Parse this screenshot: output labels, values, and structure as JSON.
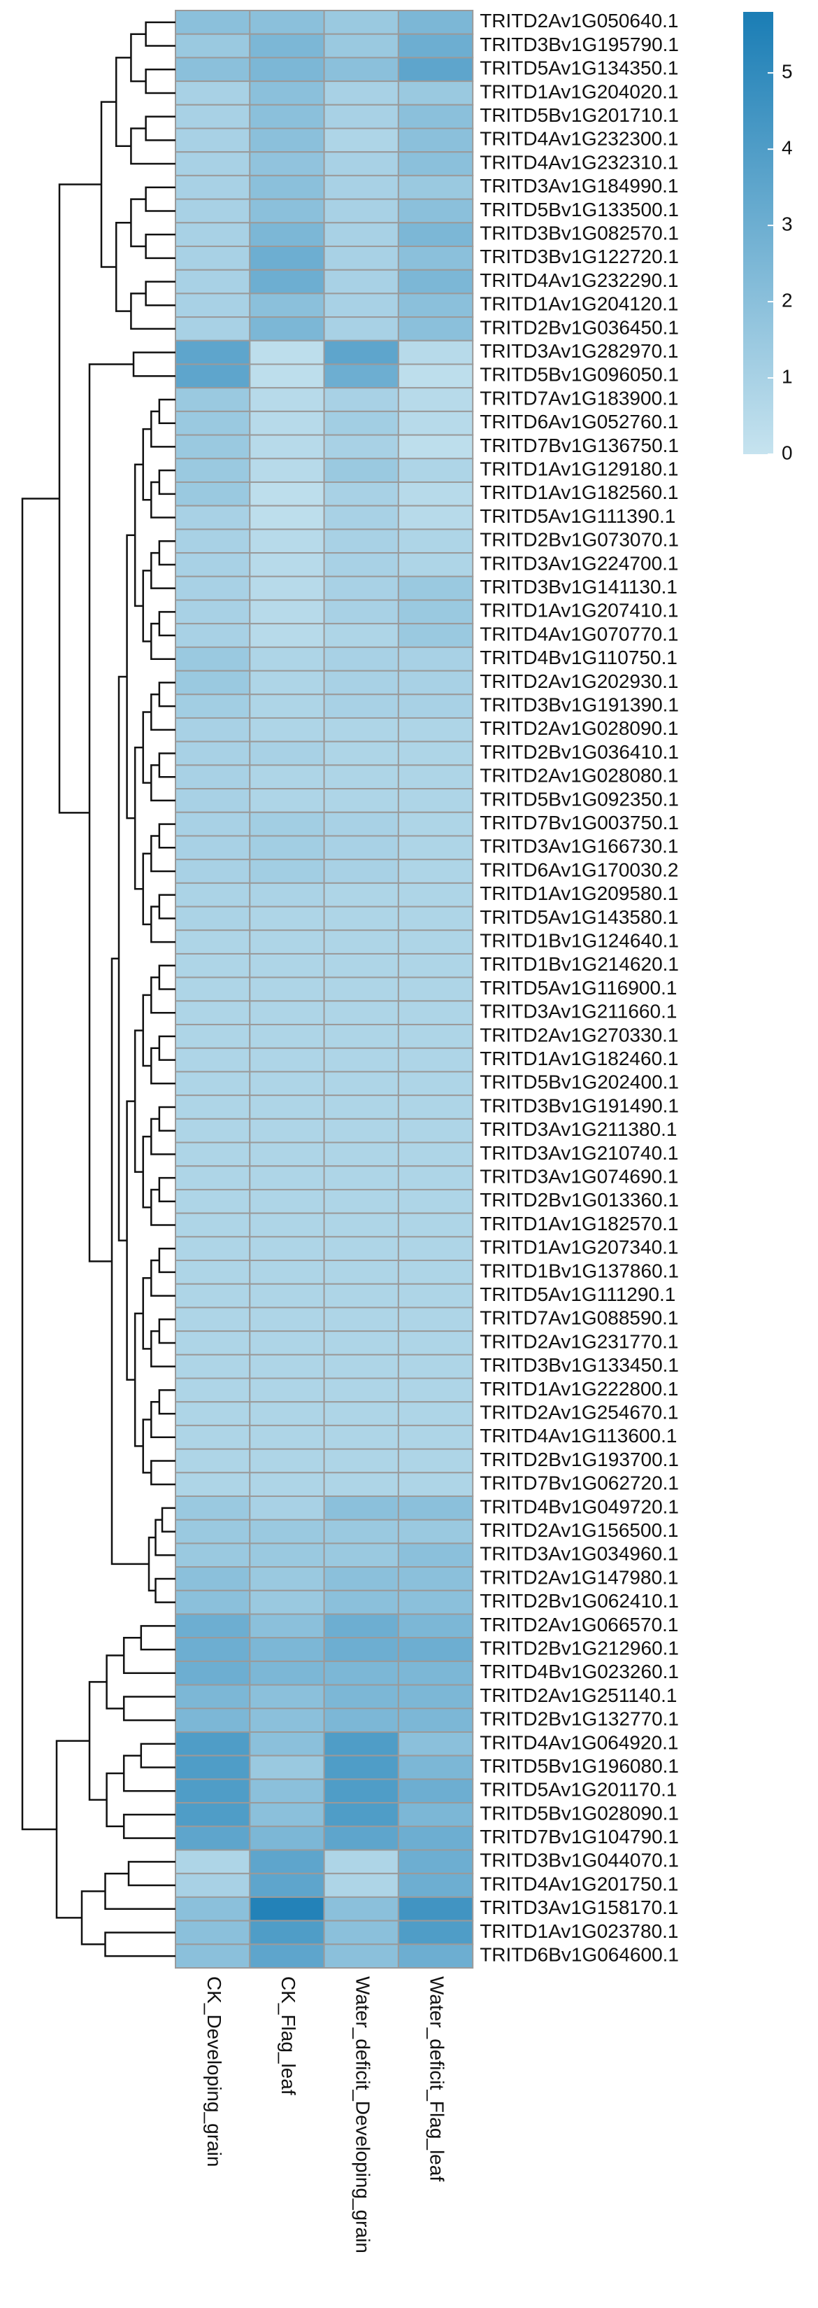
{
  "chart_data": {
    "type": "heatmap",
    "rows": [
      "TRITD2Av1G050640.1",
      "TRITD3Bv1G195790.1",
      "TRITD5Av1G134350.1",
      "TRITD1Av1G204020.1",
      "TRITD5Bv1G201710.1",
      "TRITD4Av1G232300.1",
      "TRITD4Av1G232310.1",
      "TRITD3Av1G184990.1",
      "TRITD5Bv1G133500.1",
      "TRITD3Bv1G082570.1",
      "TRITD3Bv1G122720.1",
      "TRITD4Av1G232290.1",
      "TRITD1Av1G204120.1",
      "TRITD2Bv1G036450.1",
      "TRITD3Av1G282970.1",
      "TRITD5Bv1G096050.1",
      "TRITD7Av1G183900.1",
      "TRITD6Av1G052760.1",
      "TRITD7Bv1G136750.1",
      "TRITD1Av1G129180.1",
      "TRITD1Av1G182560.1",
      "TRITD5Av1G111390.1",
      "TRITD2Bv1G073070.1",
      "TRITD3Av1G224700.1",
      "TRITD3Bv1G141130.1",
      "TRITD1Av1G207410.1",
      "TRITD4Av1G070770.1",
      "TRITD4Bv1G110750.1",
      "TRITD2Av1G202930.1",
      "TRITD3Bv1G191390.1",
      "TRITD2Av1G028090.1",
      "TRITD2Bv1G036410.1",
      "TRITD2Av1G028080.1",
      "TRITD5Bv1G092350.1",
      "TRITD7Bv1G003750.1",
      "TRITD3Av1G166730.1",
      "TRITD6Av1G170030.2",
      "TRITD1Av1G209580.1",
      "TRITD5Av1G143580.1",
      "TRITD1Bv1G124640.1",
      "TRITD1Bv1G214620.1",
      "TRITD5Av1G116900.1",
      "TRITD3Av1G211660.1",
      "TRITD2Av1G270330.1",
      "TRITD1Av1G182460.1",
      "TRITD5Bv1G202400.1",
      "TRITD3Bv1G191490.1",
      "TRITD3Av1G211380.1",
      "TRITD3Av1G210740.1",
      "TRITD3Av1G074690.1",
      "TRITD2Bv1G013360.1",
      "TRITD1Av1G182570.1",
      "TRITD1Av1G207340.1",
      "TRITD1Bv1G137860.1",
      "TRITD5Av1G111290.1",
      "TRITD7Av1G088590.1",
      "TRITD2Av1G231770.1",
      "TRITD3Bv1G133450.1",
      "TRITD1Av1G222800.1",
      "TRITD2Av1G254670.1",
      "TRITD4Av1G113600.1",
      "TRITD2Bv1G193700.1",
      "TRITD7Bv1G062720.1",
      "TRITD4Bv1G049720.1",
      "TRITD2Av1G156500.1",
      "TRITD3Av1G034960.1",
      "TRITD2Av1G147980.1",
      "TRITD2Bv1G062410.1",
      "TRITD2Av1G066570.1",
      "TRITD2Bv1G212960.1",
      "TRITD4Bv1G023260.1",
      "TRITD2Av1G251140.1",
      "TRITD2Bv1G132770.1",
      "TRITD4Av1G064920.1",
      "TRITD5Bv1G196080.1",
      "TRITD5Av1G201170.1",
      "TRITD5Bv1G028090.1",
      "TRITD7Bv1G104790.1",
      "TRITD3Bv1G044070.1",
      "TRITD4Av1G201750.1",
      "TRITD3Av1G158170.1",
      "TRITD1Av1G023780.1",
      "TRITD6Bv1G064600.1"
    ],
    "columns": [
      "CK_Developing_grain",
      "CK_Flag_leaf",
      "Water_deficit_Developing_grain",
      "Water_deficit_Flag_leaf"
    ],
    "values": [
      [
        2,
        2,
        1.5,
        2.5
      ],
      [
        1.5,
        2.5,
        1.5,
        3
      ],
      [
        2,
        2.5,
        2,
        3.5
      ],
      [
        1,
        2,
        1,
        1.5
      ],
      [
        1,
        2,
        1,
        2
      ],
      [
        1,
        2,
        0.8,
        2
      ],
      [
        1,
        1.8,
        1,
        2
      ],
      [
        1,
        2,
        1,
        1.5
      ],
      [
        1,
        2,
        1,
        2
      ],
      [
        1,
        2.5,
        1,
        2.5
      ],
      [
        1,
        3,
        1,
        2
      ],
      [
        1,
        3,
        1,
        2.5
      ],
      [
        1,
        2,
        1,
        2
      ],
      [
        1,
        2.5,
        1,
        2
      ],
      [
        3.5,
        0.3,
        3.5,
        0.5
      ],
      [
        3.5,
        0.3,
        3,
        0.3
      ],
      [
        1.5,
        0.5,
        1,
        0.5
      ],
      [
        1.5,
        0.5,
        1.2,
        0.5
      ],
      [
        1.5,
        0.5,
        1,
        0.3
      ],
      [
        1.5,
        0.5,
        1.5,
        0.8
      ],
      [
        1.5,
        0.3,
        1,
        0.5
      ],
      [
        1,
        0.3,
        1,
        0.5
      ],
      [
        1,
        0.5,
        1,
        0.8
      ],
      [
        1,
        0.5,
        1,
        0.8
      ],
      [
        1,
        0.5,
        1,
        1.5
      ],
      [
        1,
        0.5,
        1,
        1.5
      ],
      [
        1,
        0.5,
        0.8,
        1.5
      ],
      [
        1.5,
        0.8,
        1,
        1
      ],
      [
        1.5,
        0.8,
        1,
        1
      ],
      [
        1.2,
        0.8,
        1,
        1
      ],
      [
        1,
        0.8,
        0.8,
        0.8
      ],
      [
        1,
        1,
        0.8,
        0.8
      ],
      [
        1,
        0.8,
        0.8,
        0.8
      ],
      [
        1,
        0.8,
        0.8,
        0.8
      ],
      [
        1,
        1.2,
        1,
        0.8
      ],
      [
        1,
        1.2,
        1,
        0.8
      ],
      [
        1,
        1.2,
        1,
        0.8
      ],
      [
        0.9,
        0.9,
        0.8,
        0.8
      ],
      [
        0.9,
        0.8,
        0.8,
        0.8
      ],
      [
        0.8,
        0.8,
        0.8,
        0.8
      ],
      [
        0.8,
        0.8,
        0.8,
        0.8
      ],
      [
        0.8,
        0.8,
        0.8,
        0.8
      ],
      [
        0.8,
        0.8,
        0.8,
        0.8
      ],
      [
        0.8,
        0.8,
        0.8,
        0.8
      ],
      [
        0.8,
        0.8,
        0.8,
        0.8
      ],
      [
        0.8,
        0.8,
        0.8,
        0.8
      ],
      [
        0.8,
        0.8,
        0.8,
        0.8
      ],
      [
        0.8,
        0.8,
        0.8,
        0.8
      ],
      [
        0.8,
        0.8,
        0.8,
        0.8
      ],
      [
        0.8,
        0.8,
        0.8,
        0.8
      ],
      [
        0.8,
        0.8,
        0.8,
        0.8
      ],
      [
        0.8,
        0.8,
        0.8,
        0.8
      ],
      [
        0.8,
        0.8,
        0.8,
        0.8
      ],
      [
        0.8,
        0.8,
        0.8,
        0.8
      ],
      [
        0.8,
        0.8,
        0.8,
        0.8
      ],
      [
        0.8,
        0.8,
        0.8,
        0.8
      ],
      [
        0.8,
        0.8,
        0.8,
        0.8
      ],
      [
        0.8,
        0.8,
        0.8,
        0.8
      ],
      [
        0.8,
        0.8,
        0.8,
        0.8
      ],
      [
        0.8,
        0.8,
        0.8,
        0.8
      ],
      [
        0.8,
        0.8,
        0.8,
        0.8
      ],
      [
        0.8,
        0.8,
        0.8,
        0.8
      ],
      [
        0.8,
        0.8,
        0.8,
        0.8
      ],
      [
        1.5,
        1,
        2,
        2
      ],
      [
        1.5,
        1.5,
        1.5,
        1.5
      ],
      [
        1.5,
        1.5,
        1.5,
        2
      ],
      [
        2,
        1.5,
        2,
        2
      ],
      [
        2,
        1.5,
        2,
        2
      ],
      [
        3,
        2,
        3,
        2.5
      ],
      [
        3,
        2.5,
        3,
        3
      ],
      [
        3,
        2.5,
        2.5,
        2.5
      ],
      [
        2.5,
        2,
        2.5,
        2.5
      ],
      [
        2.5,
        2,
        2.5,
        2.5
      ],
      [
        4,
        2,
        4,
        2
      ],
      [
        4,
        1.5,
        4,
        2.5
      ],
      [
        4,
        2,
        4,
        3
      ],
      [
        4,
        2,
        4,
        2.5
      ],
      [
        3.5,
        2.5,
        3.5,
        3
      ],
      [
        0.8,
        3.5,
        0.8,
        3
      ],
      [
        1,
        3.5,
        0.8,
        3
      ],
      [
        2,
        5.5,
        2,
        4.5
      ],
      [
        2,
        4,
        2,
        4
      ],
      [
        2,
        3.5,
        2,
        3
      ]
    ],
    "clim": [
      0,
      5.8
    ],
    "cticks": [
      0,
      1,
      2,
      3,
      4,
      5
    ],
    "colorscale": [
      "#c6e3ef",
      "#1a7db5"
    ],
    "cell_border": "#9a9a9a"
  }
}
